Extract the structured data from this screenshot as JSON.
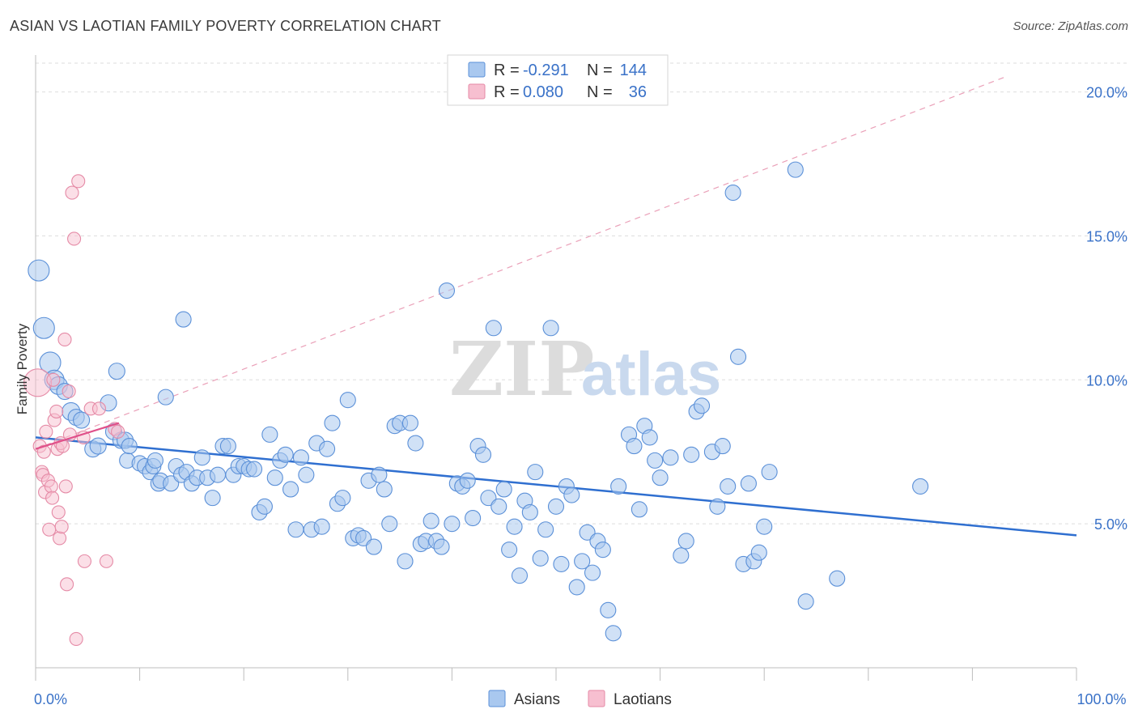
{
  "title": "ASIAN VS LAOTIAN FAMILY POVERTY CORRELATION CHART",
  "source": "Source: ZipAtlas.com",
  "watermark": {
    "zip": "ZIP",
    "atlas": "atlas"
  },
  "colors": {
    "asians_fill": "#a9c8ef",
    "asians_stroke": "#5b90d8",
    "asians_line": "#2f6fd0",
    "laotians_fill": "#f7bfd0",
    "laotians_stroke": "#e58aa6",
    "laotians_line": "#e0508a",
    "grid": "#dddddd",
    "tick_text": "#3a72c8"
  },
  "legend_top": {
    "rows": [
      {
        "r_label": "R =",
        "r_value": "-0.291",
        "n_label": "N =",
        "n_value": "144",
        "series": "asians"
      },
      {
        "r_label": "R =",
        "r_value": "0.080",
        "n_label": "N =",
        "n_value": "36",
        "series": "laotians"
      }
    ]
  },
  "legend_bottom": [
    {
      "label": "Asians",
      "series": "asians"
    },
    {
      "label": "Laotians",
      "series": "laotians"
    }
  ],
  "chart_data": {
    "type": "scatter",
    "title": "ASIAN VS LAOTIAN FAMILY POVERTY CORRELATION CHART",
    "ylabel": "Family Poverty",
    "xlabel": "",
    "xlim": [
      0,
      100
    ],
    "ylim": [
      0,
      21
    ],
    "x_tick_labels": [
      {
        "value": 0,
        "label": "0.0%"
      },
      {
        "value": 100,
        "label": "100.0%"
      }
    ],
    "y_ticks": [
      {
        "value": 5,
        "label": "5.0%"
      },
      {
        "value": 10,
        "label": "10.0%"
      },
      {
        "value": 15,
        "label": "15.0%"
      },
      {
        "value": 20,
        "label": "20.0%"
      }
    ],
    "x_minor_ticks": [
      0,
      10,
      20,
      30,
      40,
      50,
      60,
      70,
      80,
      90,
      100
    ],
    "grid": true,
    "legend_position": "top-center",
    "series": [
      {
        "name": "Asians",
        "key": "asians",
        "R": -0.291,
        "N": 144,
        "trend": {
          "x": [
            0,
            100
          ],
          "y": [
            8.0,
            4.6
          ],
          "style": "solid"
        },
        "points": [
          [
            0.3,
            13.8,
            22
          ],
          [
            0.8,
            11.8,
            22
          ],
          [
            1.4,
            10.6,
            22
          ],
          [
            1.8,
            10.0,
            20
          ],
          [
            2.2,
            9.8,
            18
          ],
          [
            2.8,
            9.6,
            16
          ],
          [
            3.4,
            8.9,
            18
          ],
          [
            3.9,
            8.7,
            16
          ],
          [
            4.4,
            8.6,
            16
          ],
          [
            5.5,
            7.6,
            16
          ],
          [
            6.0,
            7.7,
            16
          ],
          [
            7.0,
            9.2,
            16
          ],
          [
            7.5,
            8.2,
            16
          ],
          [
            8.2,
            7.9,
            16
          ],
          [
            7.8,
            10.3,
            16
          ],
          [
            8.6,
            7.9,
            16
          ],
          [
            8.8,
            7.2,
            15
          ],
          [
            9.0,
            7.7,
            15
          ],
          [
            10.0,
            7.1,
            15
          ],
          [
            10.5,
            7.0,
            15
          ],
          [
            11.0,
            6.8,
            15
          ],
          [
            11.3,
            7.0,
            15
          ],
          [
            11.5,
            7.2,
            15
          ],
          [
            11.8,
            6.4,
            15
          ],
          [
            12.0,
            6.5,
            15
          ],
          [
            12.5,
            9.4,
            15
          ],
          [
            13.0,
            6.4,
            15
          ],
          [
            13.5,
            7.0,
            15
          ],
          [
            14.0,
            6.7,
            15
          ],
          [
            14.5,
            6.8,
            15
          ],
          [
            15.0,
            6.4,
            15
          ],
          [
            14.2,
            12.1,
            15
          ],
          [
            15.5,
            6.6,
            15
          ],
          [
            16.0,
            7.3,
            15
          ],
          [
            16.5,
            6.6,
            15
          ],
          [
            17.0,
            5.9,
            15
          ],
          [
            17.5,
            6.7,
            15
          ],
          [
            18.0,
            7.7,
            15
          ],
          [
            18.5,
            7.7,
            15
          ],
          [
            19.0,
            6.7,
            15
          ],
          [
            19.5,
            7.0,
            15
          ],
          [
            20.0,
            7.0,
            15
          ],
          [
            20.5,
            6.9,
            15
          ],
          [
            21.0,
            6.9,
            15
          ],
          [
            21.5,
            5.4,
            15
          ],
          [
            22.0,
            5.6,
            15
          ],
          [
            22.5,
            8.1,
            15
          ],
          [
            23.0,
            6.6,
            15
          ],
          [
            23.5,
            7.2,
            15
          ],
          [
            24.0,
            7.4,
            15
          ],
          [
            24.5,
            6.2,
            15
          ],
          [
            25.0,
            4.8,
            15
          ],
          [
            25.5,
            7.3,
            15
          ],
          [
            26.0,
            6.7,
            15
          ],
          [
            26.5,
            4.8,
            15
          ],
          [
            27.0,
            7.8,
            15
          ],
          [
            27.5,
            4.9,
            15
          ],
          [
            28.0,
            7.6,
            15
          ],
          [
            28.5,
            8.5,
            15
          ],
          [
            29.0,
            5.7,
            15
          ],
          [
            29.5,
            5.9,
            15
          ],
          [
            30.0,
            9.3,
            15
          ],
          [
            30.5,
            4.5,
            15
          ],
          [
            31.0,
            4.6,
            15
          ],
          [
            31.5,
            4.5,
            15
          ],
          [
            32.0,
            6.5,
            15
          ],
          [
            32.5,
            4.2,
            15
          ],
          [
            33.0,
            6.7,
            15
          ],
          [
            33.5,
            6.2,
            15
          ],
          [
            34.0,
            5.0,
            15
          ],
          [
            34.5,
            8.4,
            15
          ],
          [
            35.0,
            8.5,
            15
          ],
          [
            35.5,
            3.7,
            15
          ],
          [
            36.0,
            8.5,
            15
          ],
          [
            36.5,
            7.8,
            15
          ],
          [
            37.0,
            4.3,
            15
          ],
          [
            37.5,
            4.4,
            15
          ],
          [
            38.0,
            5.1,
            15
          ],
          [
            38.5,
            4.4,
            15
          ],
          [
            39.0,
            4.2,
            15
          ],
          [
            39.5,
            13.1,
            15
          ],
          [
            40.0,
            5.0,
            15
          ],
          [
            40.5,
            6.4,
            15
          ],
          [
            41.0,
            6.3,
            15
          ],
          [
            41.5,
            6.5,
            15
          ],
          [
            42.0,
            5.2,
            15
          ],
          [
            42.5,
            7.7,
            15
          ],
          [
            43.0,
            7.4,
            15
          ],
          [
            43.5,
            5.9,
            15
          ],
          [
            44.0,
            11.8,
            15
          ],
          [
            44.5,
            5.6,
            15
          ],
          [
            45.0,
            6.2,
            15
          ],
          [
            45.5,
            4.1,
            15
          ],
          [
            46.0,
            4.9,
            15
          ],
          [
            46.5,
            3.2,
            15
          ],
          [
            47.0,
            5.8,
            15
          ],
          [
            47.5,
            5.4,
            15
          ],
          [
            48.0,
            6.8,
            15
          ],
          [
            48.5,
            3.8,
            15
          ],
          [
            49.0,
            4.8,
            15
          ],
          [
            49.5,
            11.8,
            15
          ],
          [
            50.0,
            5.6,
            15
          ],
          [
            50.5,
            3.6,
            15
          ],
          [
            51.0,
            6.3,
            15
          ],
          [
            51.5,
            6.0,
            15
          ],
          [
            52.0,
            2.8,
            15
          ],
          [
            52.5,
            3.7,
            15
          ],
          [
            53.0,
            4.7,
            15
          ],
          [
            53.5,
            3.3,
            15
          ],
          [
            54.0,
            4.4,
            15
          ],
          [
            54.5,
            4.1,
            15
          ],
          [
            55.0,
            2.0,
            15
          ],
          [
            55.5,
            1.2,
            15
          ],
          [
            56.0,
            6.3,
            15
          ],
          [
            57.0,
            8.1,
            15
          ],
          [
            57.5,
            7.7,
            15
          ],
          [
            58.0,
            5.5,
            15
          ],
          [
            58.5,
            8.4,
            15
          ],
          [
            59.0,
            8.0,
            15
          ],
          [
            59.5,
            7.2,
            15
          ],
          [
            60.0,
            6.6,
            15
          ],
          [
            61.0,
            7.3,
            15
          ],
          [
            62.0,
            3.9,
            15
          ],
          [
            62.5,
            4.4,
            15
          ],
          [
            63.0,
            7.4,
            15
          ],
          [
            63.5,
            8.9,
            15
          ],
          [
            64.0,
            9.1,
            15
          ],
          [
            65.0,
            7.5,
            15
          ],
          [
            65.5,
            5.6,
            15
          ],
          [
            66.0,
            7.7,
            15
          ],
          [
            66.5,
            6.3,
            15
          ],
          [
            67.0,
            16.5,
            15
          ],
          [
            67.5,
            10.8,
            15
          ],
          [
            68.0,
            3.6,
            15
          ],
          [
            68.5,
            6.4,
            15
          ],
          [
            69.0,
            3.7,
            15
          ],
          [
            69.5,
            4.0,
            15
          ],
          [
            70.0,
            4.9,
            15
          ],
          [
            70.5,
            6.8,
            15
          ],
          [
            73.0,
            17.3,
            15
          ],
          [
            74.0,
            2.3,
            15
          ],
          [
            77.0,
            3.1,
            15
          ],
          [
            85.0,
            6.3,
            15
          ]
        ]
      },
      {
        "name": "Laotians",
        "key": "laotians",
        "R": 0.08,
        "N": 36,
        "trend": {
          "x": [
            0,
            8
          ],
          "y": [
            7.6,
            8.5
          ],
          "style": "solid",
          "extended_dashed_to": {
            "x": 93,
            "y": 20.5
          }
        },
        "points": [
          [
            0.2,
            9.9,
            30
          ],
          [
            0.4,
            7.7,
            12
          ],
          [
            0.6,
            6.8,
            12
          ],
          [
            0.7,
            6.7,
            12
          ],
          [
            0.8,
            7.5,
            12
          ],
          [
            0.9,
            6.1,
            12
          ],
          [
            1.0,
            8.2,
            12
          ],
          [
            1.2,
            6.5,
            12
          ],
          [
            1.3,
            4.8,
            12
          ],
          [
            1.5,
            6.3,
            12
          ],
          [
            1.6,
            5.9,
            12
          ],
          [
            1.7,
            10.0,
            12
          ],
          [
            1.8,
            8.6,
            12
          ],
          [
            2.0,
            8.9,
            12
          ],
          [
            2.1,
            7.6,
            12
          ],
          [
            2.2,
            5.4,
            12
          ],
          [
            2.3,
            4.5,
            12
          ],
          [
            2.4,
            7.8,
            12
          ],
          [
            2.5,
            4.9,
            12
          ],
          [
            2.6,
            7.7,
            12
          ],
          [
            2.8,
            11.4,
            12
          ],
          [
            2.9,
            6.3,
            12
          ],
          [
            3.0,
            2.9,
            12
          ],
          [
            3.2,
            9.6,
            12
          ],
          [
            3.3,
            8.1,
            12
          ],
          [
            3.5,
            16.5,
            12
          ],
          [
            3.7,
            14.9,
            12
          ],
          [
            3.9,
            1.0,
            12
          ],
          [
            4.1,
            16.9,
            12
          ],
          [
            4.6,
            8.0,
            12
          ],
          [
            4.7,
            3.7,
            12
          ],
          [
            5.3,
            9.0,
            12
          ],
          [
            6.1,
            9.0,
            12
          ],
          [
            6.8,
            3.7,
            12
          ],
          [
            7.6,
            8.3,
            12
          ],
          [
            7.9,
            8.2,
            12
          ]
        ]
      }
    ]
  }
}
